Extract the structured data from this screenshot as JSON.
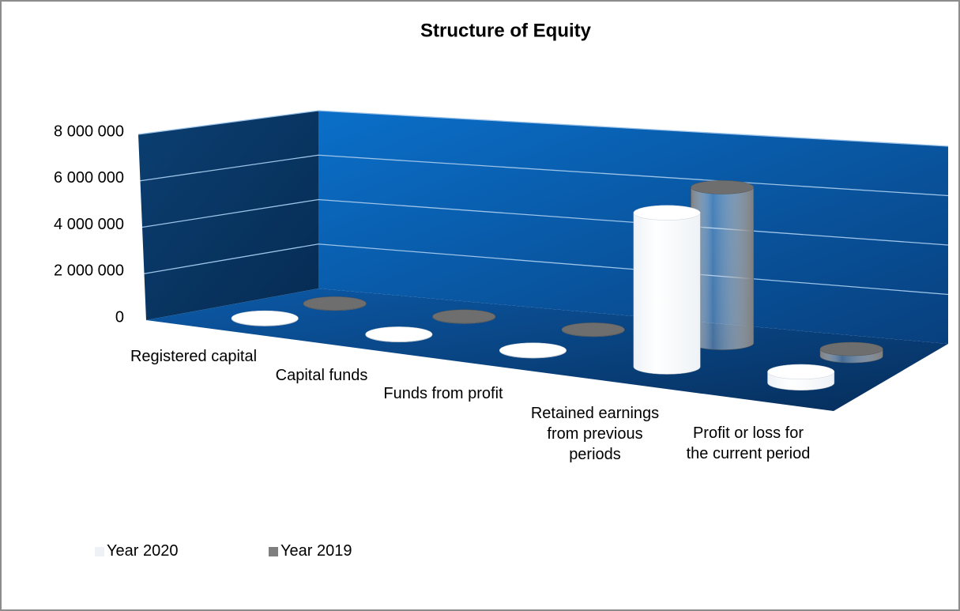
{
  "chart_data": {
    "type": "bar3d",
    "title": "Structure of Equity",
    "categories": [
      "Registered capital",
      "Capital funds",
      "Funds from profit",
      "Retained earnings from previous periods",
      "Profit or loss for the current period"
    ],
    "series": [
      {
        "name": "Year 2020",
        "color": "#eef2f6",
        "values": [
          20000,
          20000,
          20000,
          6300000,
          450000
        ]
      },
      {
        "name": "Year 2019",
        "color": "#7f7f7f",
        "values": [
          20000,
          20000,
          20000,
          6600000,
          300000
        ]
      }
    ],
    "ylim": [
      0,
      8000000
    ],
    "yticks": [
      0,
      {
        "value": 2000000,
        "label": "2 000 000"
      },
      {
        "value": 4000000,
        "label": "4 000 000"
      },
      {
        "value": 6000000,
        "label": "6 000 000"
      },
      {
        "value": 8000000,
        "label": "8 000 000"
      }
    ],
    "grid": true
  }
}
